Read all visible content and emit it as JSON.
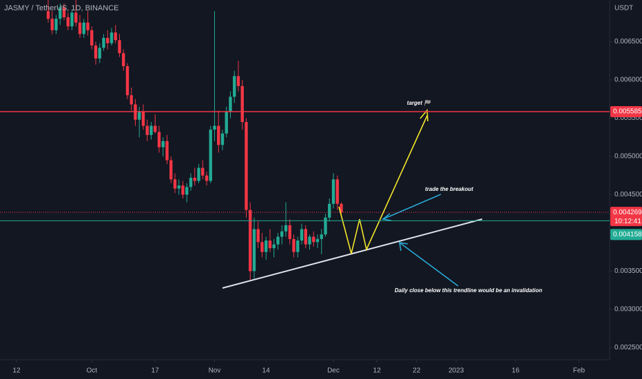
{
  "chart_data": {
    "type": "candlestick",
    "title": "JASMY / TetherUS, 1D, BINANCE",
    "currency": "USDT",
    "up_color": "#22ab94",
    "down_color": "#f23645",
    "candles": [
      [
        0.0069,
        0.00705,
        0.00675,
        0.0068
      ],
      [
        0.0068,
        0.0069,
        0.0066,
        0.00665
      ],
      [
        0.00665,
        0.00685,
        0.0066,
        0.0068
      ],
      [
        0.0068,
        0.007,
        0.00672,
        0.00695
      ],
      [
        0.00695,
        0.007,
        0.00678,
        0.00682
      ],
      [
        0.00682,
        0.00688,
        0.00665,
        0.0067
      ],
      [
        0.0067,
        0.00692,
        0.00665,
        0.00688
      ],
      [
        0.00688,
        0.00705,
        0.0067,
        0.00675
      ],
      [
        0.00675,
        0.00685,
        0.00655,
        0.0066
      ],
      [
        0.0066,
        0.0068,
        0.00655,
        0.00675
      ],
      [
        0.00675,
        0.0069,
        0.00658,
        0.00665
      ],
      [
        0.00665,
        0.0067,
        0.0064,
        0.00645
      ],
      [
        0.00645,
        0.0065,
        0.0062,
        0.00628
      ],
      [
        0.00628,
        0.00648,
        0.00622,
        0.00642
      ],
      [
        0.00642,
        0.0066,
        0.00638,
        0.00655
      ],
      [
        0.00655,
        0.00665,
        0.0064,
        0.00648
      ],
      [
        0.00648,
        0.00668,
        0.00645,
        0.00662
      ],
      [
        0.00662,
        0.00672,
        0.00648,
        0.00652
      ],
      [
        0.00652,
        0.0066,
        0.0063,
        0.00635
      ],
      [
        0.00635,
        0.0064,
        0.00612,
        0.00618
      ],
      [
        0.00618,
        0.00622,
        0.00575,
        0.0058
      ],
      [
        0.0058,
        0.0059,
        0.0056,
        0.00568
      ],
      [
        0.00568,
        0.00575,
        0.0054,
        0.00548
      ],
      [
        0.00548,
        0.00565,
        0.00525,
        0.00558
      ],
      [
        0.00558,
        0.00568,
        0.00535,
        0.0054
      ],
      [
        0.0054,
        0.00548,
        0.0052,
        0.00528
      ],
      [
        0.00528,
        0.00545,
        0.00522,
        0.0054
      ],
      [
        0.0054,
        0.00555,
        0.0053,
        0.00532
      ],
      [
        0.00532,
        0.0054,
        0.00505,
        0.00512
      ],
      [
        0.00512,
        0.00525,
        0.005,
        0.0052
      ],
      [
        0.0052,
        0.00528,
        0.0049,
        0.00495
      ],
      [
        0.00495,
        0.005,
        0.00465,
        0.0047
      ],
      [
        0.0047,
        0.00478,
        0.00452,
        0.00458
      ],
      [
        0.00458,
        0.0047,
        0.0045,
        0.00462
      ],
      [
        0.00462,
        0.00468,
        0.00445,
        0.0045
      ],
      [
        0.0045,
        0.00465,
        0.0044,
        0.0046
      ],
      [
        0.0046,
        0.00478,
        0.00455,
        0.00472
      ],
      [
        0.00472,
        0.00485,
        0.00462,
        0.00468
      ],
      [
        0.00468,
        0.0049,
        0.00465,
        0.00485
      ],
      [
        0.00485,
        0.00495,
        0.0047,
        0.00475
      ],
      [
        0.00475,
        0.0048,
        0.00462,
        0.00468
      ],
      [
        0.00468,
        0.0054,
        0.00465,
        0.00535
      ],
      [
        0.00535,
        0.0069,
        0.0052,
        0.0054
      ],
      [
        0.0054,
        0.0056,
        0.00505,
        0.00515
      ],
      [
        0.00515,
        0.00535,
        0.00508,
        0.0053
      ],
      [
        0.0053,
        0.00565,
        0.00525,
        0.00558
      ],
      [
        0.00558,
        0.00585,
        0.0055,
        0.00578
      ],
      [
        0.00578,
        0.00612,
        0.0057,
        0.00605
      ],
      [
        0.00605,
        0.00625,
        0.00585,
        0.00592
      ],
      [
        0.00592,
        0.006,
        0.00535,
        0.00545
      ],
      [
        0.00545,
        0.0055,
        0.0042,
        0.0043
      ],
      [
        0.0043,
        0.0044,
        0.00337,
        0.0035
      ],
      [
        0.0035,
        0.0042,
        0.0034,
        0.00405
      ],
      [
        0.00405,
        0.00415,
        0.0038,
        0.00388
      ],
      [
        0.00388,
        0.004,
        0.00368,
        0.00375
      ],
      [
        0.00375,
        0.00395,
        0.00365,
        0.0039
      ],
      [
        0.0039,
        0.00405,
        0.00375,
        0.0038
      ],
      [
        0.0038,
        0.00392,
        0.00368,
        0.00385
      ],
      [
        0.00385,
        0.004,
        0.00378,
        0.00395
      ],
      [
        0.00395,
        0.0041,
        0.00385,
        0.00402
      ],
      [
        0.00402,
        0.0044,
        0.00395,
        0.0041
      ],
      [
        0.0041,
        0.00418,
        0.00385,
        0.00392
      ],
      [
        0.00392,
        0.00398,
        0.00368,
        0.00375
      ],
      [
        0.00375,
        0.00395,
        0.00368,
        0.0039
      ],
      [
        0.0039,
        0.00412,
        0.00385,
        0.00405
      ],
      [
        0.00405,
        0.0041,
        0.0038,
        0.00385
      ],
      [
        0.00385,
        0.00398,
        0.00378,
        0.00395
      ],
      [
        0.00395,
        0.00402,
        0.00382,
        0.00388
      ],
      [
        0.00388,
        0.00398,
        0.0038,
        0.00392
      ],
      [
        0.00392,
        0.00405,
        0.00372,
        0.00398
      ],
      [
        0.00398,
        0.00425,
        0.00395,
        0.0042
      ],
      [
        0.0042,
        0.00445,
        0.00415,
        0.00438
      ],
      [
        0.00438,
        0.00478,
        0.00432,
        0.0047
      ],
      [
        0.0047,
        0.00475,
        0.0043,
        0.00438
      ],
      [
        0.00438,
        0.0044,
        0.00422,
        0.004269
      ]
    ],
    "xlim": [
      -12.17,
      141.74
    ],
    "xticks": [
      {
        "value": -8,
        "label": "12"
      },
      {
        "value": 11,
        "label": "Oct"
      },
      {
        "value": 27,
        "label": "17"
      },
      {
        "value": 42,
        "label": "Nov"
      },
      {
        "value": 55,
        "label": "14"
      },
      {
        "value": 72,
        "label": "Dec"
      },
      {
        "value": 83,
        "label": "12"
      },
      {
        "value": 93,
        "label": "22"
      },
      {
        "value": 103,
        "label": "2023"
      },
      {
        "value": 118,
        "label": "16"
      },
      {
        "value": 134,
        "label": "Feb"
      }
    ],
    "ylim": [
      0.002342,
      0.007045
    ],
    "yticks": [
      {
        "value": 0.0065,
        "label": "0.006500"
      },
      {
        "value": 0.006,
        "label": "0.006000"
      },
      {
        "value": 0.0055,
        "label": "0.005500"
      },
      {
        "value": 0.005,
        "label": "0.005000"
      },
      {
        "value": 0.0045,
        "label": "0.004500"
      },
      {
        "value": 0.0035,
        "label": "0.003500"
      },
      {
        "value": 0.003,
        "label": "0.003000"
      },
      {
        "value": 0.0025,
        "label": "0.002500"
      }
    ],
    "horizontal_lines": [
      {
        "value": 0.005585,
        "color": "#f23645"
      },
      {
        "value": 0.004158,
        "color": "#22ab94"
      }
    ],
    "last_price": 0.004269,
    "countdown": "10:12:41",
    "annotations": [
      "target 🏁",
      "trade the breakout",
      "Daily close below this trendline would be an invalidation"
    ]
  }
}
